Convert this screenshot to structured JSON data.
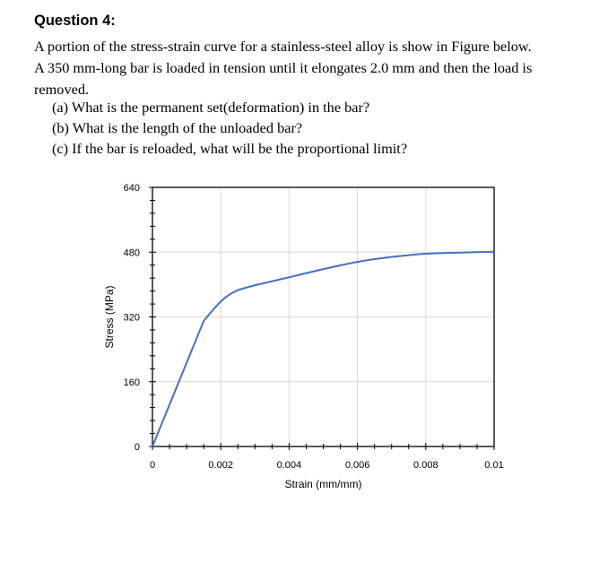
{
  "question": {
    "title": "Question 4:",
    "intro_lines": [
      "A portion of the stress-strain curve for a stainless-steel alloy is show in Figure below.",
      "A 350 mm-long bar is loaded in tension until it elongates 2.0 mm and then the load is",
      "removed."
    ],
    "parts": [
      "(a) What is the permanent set(deformation) in the bar?",
      "(b) What is the length of the unloaded bar?",
      "(c) If the bar is reloaded, what will be the proportional limit?"
    ]
  },
  "chart_data": {
    "type": "line",
    "title": "",
    "xlabel": "Strain (mm/mm)",
    "ylabel": "Stress (MPa)",
    "xlim": [
      0,
      0.01
    ],
    "ylim": [
      0,
      640
    ],
    "x_ticks": [
      0,
      0.002,
      0.004,
      0.006,
      0.008,
      0.01
    ],
    "x_tick_labels": [
      "0",
      "0.002",
      "0.004",
      "0.006",
      "0.008",
      "0.01"
    ],
    "y_ticks": [
      0,
      160,
      320,
      480,
      640
    ],
    "y_tick_labels": [
      "0",
      "160",
      "320",
      "480",
      "640"
    ],
    "grid": true,
    "legend": "none",
    "line_color": "#4472C4",
    "series": [
      {
        "x": [
          0,
          0.0015,
          0.0018,
          0.002,
          0.0022,
          0.0025,
          0.003,
          0.0035,
          0.004,
          0.005,
          0.006,
          0.007,
          0.008,
          0.009,
          0.01
        ],
        "y": [
          0,
          310,
          340,
          358,
          372,
          386,
          398,
          408,
          418,
          438,
          456,
          468,
          476,
          479,
          481
        ]
      }
    ]
  }
}
